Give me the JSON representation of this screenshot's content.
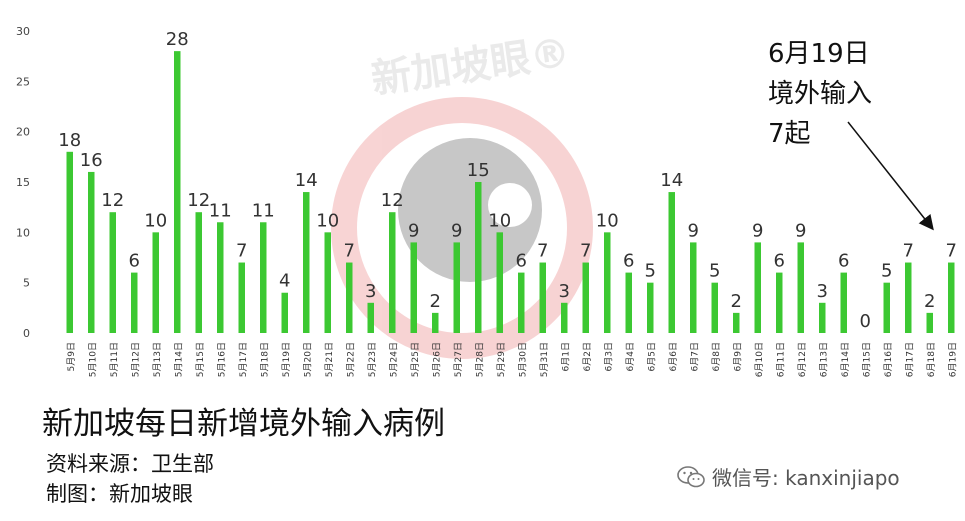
{
  "chart_data": {
    "type": "bar",
    "categories": [
      "5月9日",
      "5月10日",
      "5月11日",
      "5月12日",
      "5月13日",
      "5月14日",
      "5月15日",
      "5月16日",
      "5月17日",
      "5月18日",
      "5月19日",
      "5月20日",
      "5月21日",
      "5月22日",
      "5月23日",
      "5月24日",
      "5月25日",
      "5月26日",
      "5月27日",
      "5月28日",
      "5月29日",
      "5月30日",
      "5月31日",
      "6月1日",
      "6月2日",
      "6月3日",
      "6月4日",
      "6月5日",
      "6月6日",
      "6月7日",
      "6月8日",
      "6月9日",
      "6月10日",
      "6月11日",
      "6月12日",
      "6月13日",
      "6月14日",
      "6月15日",
      "6月16日",
      "6月17日",
      "6月18日",
      "6月19日"
    ],
    "values": [
      18,
      16,
      12,
      6,
      10,
      28,
      12,
      11,
      7,
      11,
      4,
      14,
      10,
      7,
      3,
      12,
      9,
      2,
      9,
      15,
      10,
      6,
      7,
      3,
      7,
      10,
      6,
      5,
      14,
      9,
      5,
      2,
      9,
      6,
      9,
      3,
      6,
      0,
      5,
      7,
      2,
      7
    ],
    "ylim": [
      0,
      30
    ],
    "yticks": [
      0,
      5,
      10,
      15,
      20,
      25,
      30
    ],
    "bar_color": "#3cc832",
    "grid": false,
    "title": "新加坡每日新增境外输入病例"
  },
  "source_label": "资料来源：卫生部",
  "maker_label": "制图：新加坡眼",
  "watermark": {
    "text": "新加坡眼®",
    "color": "#e8a0a0"
  },
  "annotation": {
    "lines": [
      "6月19日",
      "境外输入",
      "7起"
    ]
  },
  "wechat": {
    "icon": "wechat-icon",
    "text": "微信号: kanxinjiapo"
  }
}
